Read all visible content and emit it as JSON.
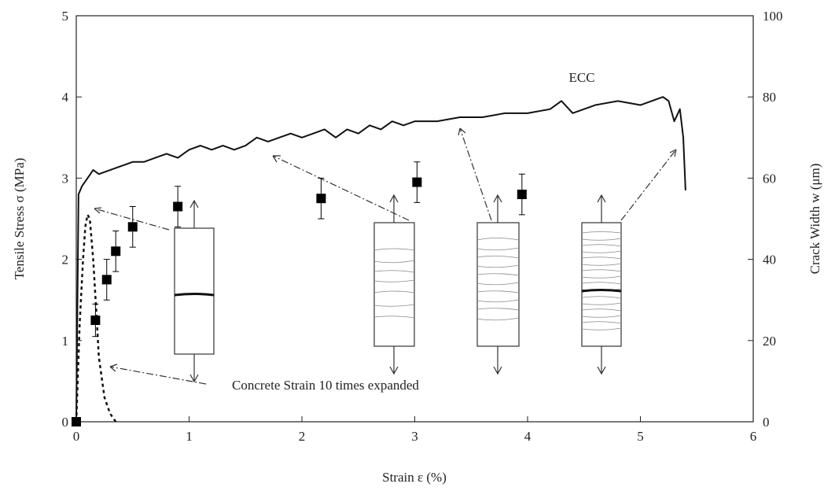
{
  "chart_data": {
    "type": "line",
    "xlabel": "Strain ε (%)",
    "ylabel": "Tensile Stress σ (MPa)",
    "y2label": "Crack Width w (μm)",
    "xlim": [
      0,
      6
    ],
    "xticks": [
      0,
      1,
      2,
      3,
      4,
      5,
      6
    ],
    "ylim": [
      0,
      5
    ],
    "yticks": [
      0,
      1,
      2,
      3,
      4,
      5
    ],
    "y2lim": [
      0,
      100
    ],
    "y2ticks": [
      0,
      20,
      40,
      60,
      80,
      100
    ],
    "annotations": [
      "Concrete Strain 10 times expanded"
    ],
    "series": [
      {
        "name": "ECC",
        "color": "#111",
        "x": [
          0,
          0.02,
          0.05,
          0.1,
          0.15,
          0.2,
          0.3,
          0.4,
          0.5,
          0.6,
          0.7,
          0.8,
          0.9,
          1.0,
          1.1,
          1.2,
          1.3,
          1.4,
          1.5,
          1.6,
          1.7,
          1.8,
          1.9,
          2.0,
          2.1,
          2.2,
          2.3,
          2.4,
          2.5,
          2.6,
          2.7,
          2.8,
          2.9,
          3.0,
          3.2,
          3.4,
          3.6,
          3.8,
          4.0,
          4.2,
          4.3,
          4.4,
          4.6,
          4.8,
          5.0,
          5.2,
          5.25,
          5.3,
          5.35,
          5.38,
          5.4
        ],
        "values": [
          0,
          2.8,
          2.9,
          3.0,
          3.1,
          3.05,
          3.1,
          3.15,
          3.2,
          3.2,
          3.25,
          3.3,
          3.25,
          3.35,
          3.4,
          3.35,
          3.4,
          3.35,
          3.4,
          3.5,
          3.45,
          3.5,
          3.55,
          3.5,
          3.55,
          3.6,
          3.5,
          3.6,
          3.55,
          3.65,
          3.6,
          3.7,
          3.65,
          3.7,
          3.7,
          3.75,
          3.75,
          3.8,
          3.8,
          3.85,
          3.95,
          3.8,
          3.9,
          3.95,
          3.9,
          4.0,
          3.95,
          3.7,
          3.85,
          3.5,
          2.85
        ]
      },
      {
        "color": "#111",
        "dashed": true,
        "x": [
          0,
          0.03,
          0.06,
          0.08,
          0.1,
          0.12,
          0.15,
          0.18,
          0.2,
          0.25,
          0.3,
          0.35
        ],
        "values": [
          0,
          1.2,
          2.0,
          2.4,
          2.55,
          2.5,
          2.0,
          1.3,
          0.8,
          0.3,
          0.1,
          0
        ]
      }
    ],
    "crack_width": {
      "axis": "y2",
      "color": "#000",
      "x": [
        0,
        0.17,
        0.27,
        0.35,
        0.5,
        0.9,
        2.17,
        3.02,
        3.95
      ],
      "values": [
        0,
        25,
        35,
        42,
        48,
        53,
        55,
        59,
        56
      ],
      "errors": [
        0,
        4,
        5,
        5,
        5,
        5,
        5,
        5,
        5
      ]
    }
  }
}
